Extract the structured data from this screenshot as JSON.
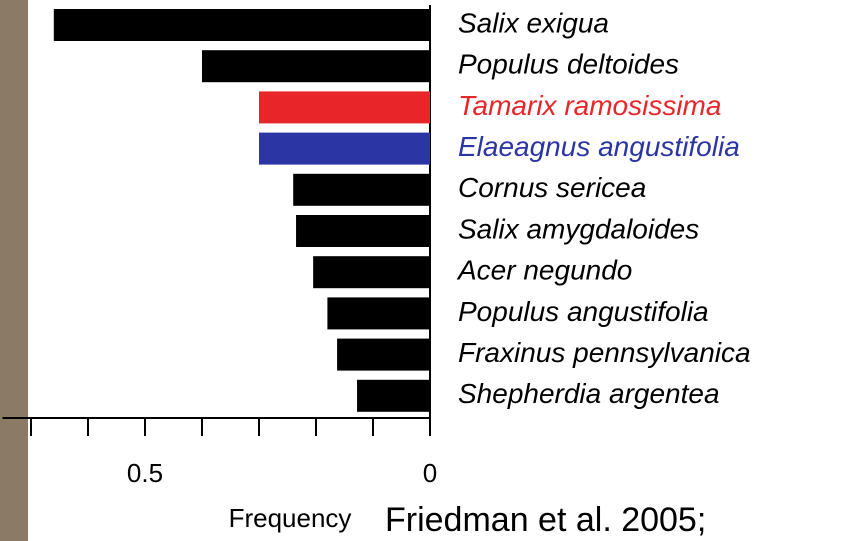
{
  "chart_data": {
    "type": "bar",
    "orientation": "horizontal",
    "categories": [
      "Salix exigua",
      "Populus deltoides",
      "Tamarix ramosissima",
      "Elaeagnus angustifolia",
      "Cornus sericea",
      "Salix amygdaloides",
      "Acer negundo",
      "Populus angustifolia",
      "Fraxinus pennsylvanica",
      "Shepherdia argentea"
    ],
    "values": [
      0.66,
      0.4,
      0.3,
      0.3,
      0.24,
      0.235,
      0.205,
      0.18,
      0.163,
      0.128
    ],
    "colors": [
      "#000000",
      "#000000",
      "#e8262a",
      "#2b35a3",
      "#000000",
      "#000000",
      "#000000",
      "#000000",
      "#000000",
      "#000000"
    ],
    "xlim": [
      0,
      0.75
    ],
    "x_reversed": true,
    "xticks": [
      0,
      {
        "value": 0.1,
        "label": null
      },
      {
        "value": 0.2,
        "label": null
      },
      {
        "value": 0.3,
        "label": null
      },
      {
        "value": 0.4,
        "label": null
      },
      0.5,
      {
        "value": 0.6,
        "label": null
      },
      {
        "value": 0.7,
        "label": null
      }
    ],
    "xlabel": "Frequency",
    "annotation": "Friedman et al. 2005;"
  }
}
